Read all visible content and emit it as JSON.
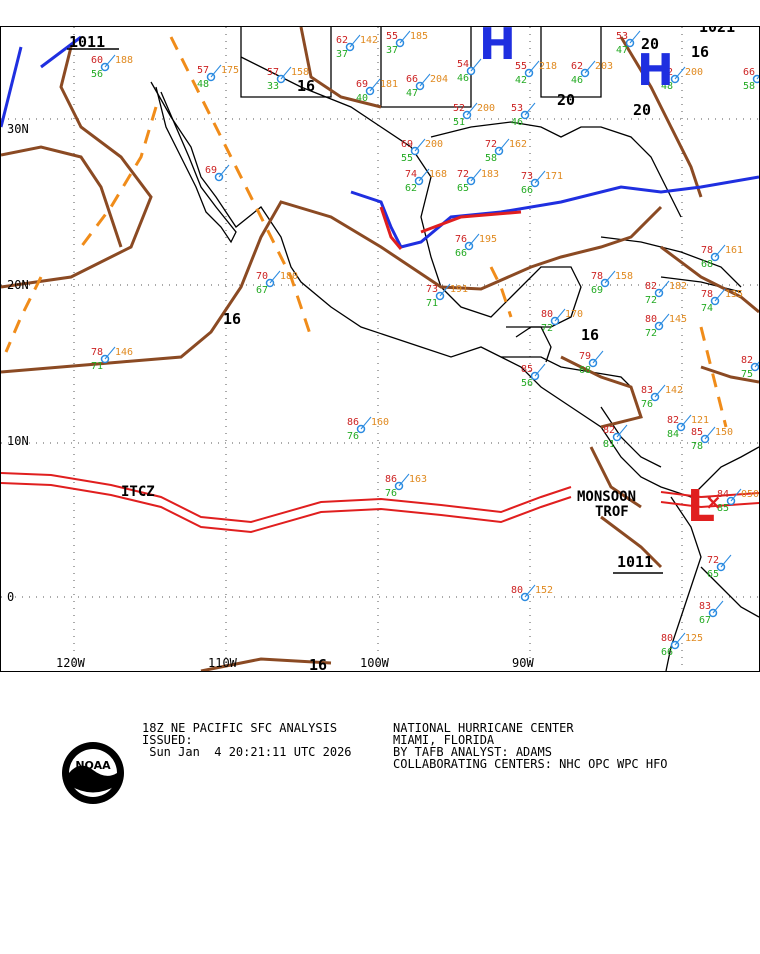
{
  "map": {
    "lat_labels": [
      {
        "lat": 30,
        "text": "30N"
      },
      {
        "lat": 20,
        "text": "20N"
      },
      {
        "lat": 10,
        "text": "10N"
      },
      {
        "lat": 0,
        "text": "0"
      }
    ],
    "lon_labels": [
      {
        "lon": -120,
        "text": "120W"
      },
      {
        "lon": -110,
        "text": "110W"
      },
      {
        "lon": -100,
        "text": "100W"
      },
      {
        "lon": -90,
        "text": "90W"
      }
    ],
    "isobar_labels": [
      "1011",
      "16",
      "16",
      "16",
      "16",
      "20",
      "20",
      "20",
      "1021",
      "1011",
      "16"
    ],
    "pressure_centers": [
      {
        "type": "H",
        "color": "#1f2fe0"
      },
      {
        "type": "H",
        "color": "#1f2fe0"
      },
      {
        "type": "L",
        "color": "#e01f1f"
      }
    ],
    "features": {
      "itcz_label": "ITCZ",
      "monsoon_label_1": "MONSOON",
      "monsoon_label_2": "TROF"
    },
    "colors": {
      "isobar": "#8b4a23",
      "trough": "#f08c1a",
      "cold_front": "#1f2fe0",
      "warm_front": "#e01f1f",
      "itcz": "#e01f1f",
      "coast": "#000000"
    },
    "observations": [
      {
        "t": "62",
        "d": "37",
        "p": "142"
      },
      {
        "t": "55",
        "d": "37",
        "p": "185"
      },
      {
        "t": "57",
        "d": "48",
        "p": "175"
      },
      {
        "t": "57",
        "d": "33",
        "p": "158"
      },
      {
        "t": "60",
        "d": "56",
        "p": "188"
      },
      {
        "t": "69",
        "d": "40",
        "p": "181"
      },
      {
        "t": "66",
        "d": "47",
        "p": "204"
      },
      {
        "t": "54",
        "d": "46",
        "p": ""
      },
      {
        "t": "55",
        "d": "42",
        "p": "218"
      },
      {
        "t": "62",
        "d": "46",
        "p": "203"
      },
      {
        "t": "53",
        "d": "47",
        "p": ""
      },
      {
        "t": "62",
        "d": "48",
        "p": "200"
      },
      {
        "t": "52",
        "d": "51",
        "p": "200"
      },
      {
        "t": "53",
        "d": "46",
        "p": ""
      },
      {
        "t": "69",
        "d": "55",
        "p": "200"
      },
      {
        "t": "72",
        "d": "58",
        "p": "162"
      },
      {
        "t": "72",
        "d": "65",
        "p": "183"
      },
      {
        "t": "73",
        "d": "66",
        "p": "171"
      },
      {
        "t": "74",
        "d": "62",
        "p": "168"
      },
      {
        "t": "76",
        "d": "66",
        "p": "195"
      },
      {
        "t": "78",
        "d": "69",
        "p": "158"
      },
      {
        "t": "70",
        "d": "67",
        "p": "180"
      },
      {
        "t": "73",
        "d": "71",
        "p": "191"
      },
      {
        "t": "78",
        "d": "71",
        "p": "146"
      },
      {
        "t": "80",
        "d": "72",
        "p": "170"
      },
      {
        "t": "79",
        "d": "68",
        "p": ""
      },
      {
        "t": "85",
        "d": "56",
        "p": ""
      },
      {
        "t": "82",
        "d": "72",
        "p": "182"
      },
      {
        "t": "80",
        "d": "72",
        "p": "145"
      },
      {
        "t": "83",
        "d": "76",
        "p": "142"
      },
      {
        "t": "82",
        "d": "84",
        "p": "121"
      },
      {
        "t": "85",
        "d": "78",
        "p": "150"
      },
      {
        "t": "86",
        "d": "76",
        "p": "160"
      },
      {
        "t": "86",
        "d": "76",
        "p": "163"
      },
      {
        "t": "80",
        "d": "",
        "p": "152"
      },
      {
        "t": "82",
        "d": "81",
        "p": ""
      },
      {
        "t": "72",
        "d": "65",
        "p": ""
      },
      {
        "t": "83",
        "d": "67",
        "p": ""
      },
      {
        "t": "80",
        "d": "66",
        "p": "125"
      },
      {
        "t": "82",
        "d": "75",
        "p": ""
      },
      {
        "t": "84",
        "d": "85",
        "p": "050"
      },
      {
        "t": "78",
        "d": "68",
        "p": "161"
      },
      {
        "t": "78",
        "d": "74",
        "p": "135"
      },
      {
        "t": "66",
        "d": "58",
        "p": ""
      },
      {
        "t": "69",
        "d": "",
        "p": ""
      }
    ]
  },
  "info": {
    "line1a": "18Z NE PACIFIC SFC ANALYSIS",
    "line1b": "NATIONAL HURRICANE CENTER",
    "line2a": "ISSUED:",
    "line2b": "MIAMI, FLORIDA",
    "line3a": " Sun Jan  4 20:21:11 UTC 2026",
    "line3b": "BY TAFB ANALYST: ADAMS",
    "line4b": "COLLABORATING CENTERS: NHC OPC WPC HFO",
    "logo_text": "NOAA"
  }
}
